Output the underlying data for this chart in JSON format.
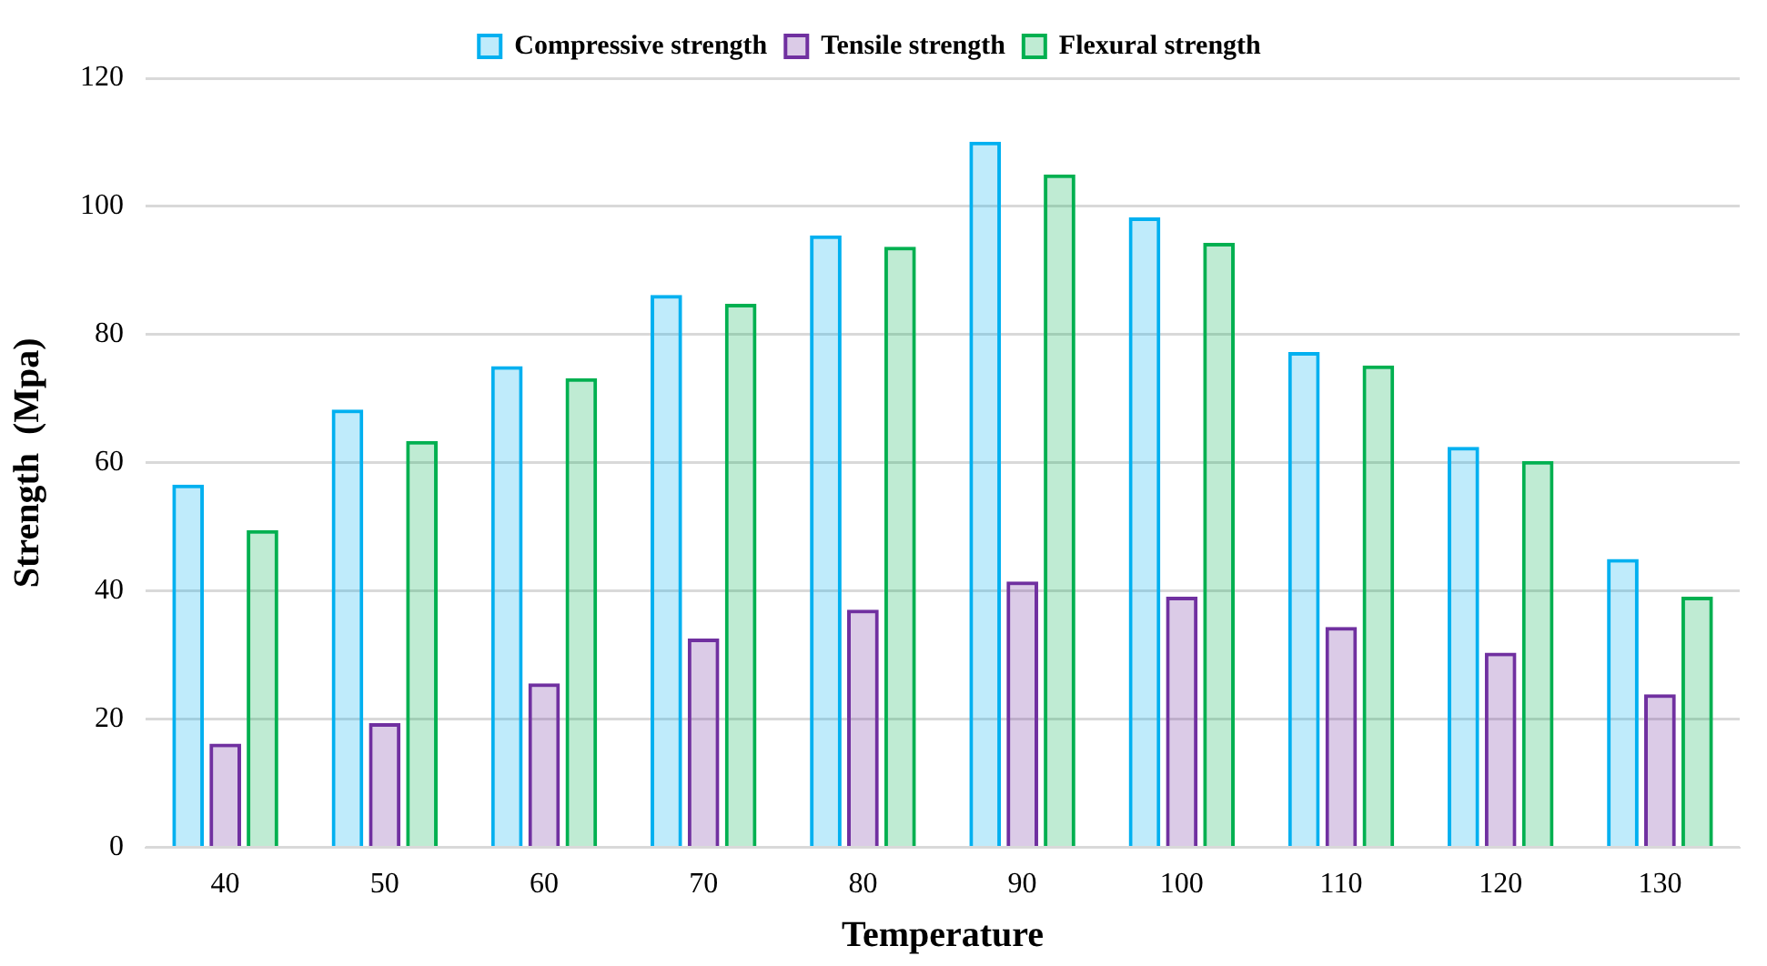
{
  "chart_data": {
    "type": "bar",
    "xlabel": "Temperature",
    "ylabel": "Strength  (Mpa)",
    "categories": [
      "40",
      "50",
      "60",
      "70",
      "80",
      "90",
      "100",
      "110",
      "120",
      "130"
    ],
    "series": [
      {
        "name": "Compressive strength",
        "color": "#00b0f0",
        "values": [
          56.6,
          68.3,
          75.1,
          86.2,
          95.5,
          110.1,
          98.3,
          77.3,
          62.5,
          45.0
        ]
      },
      {
        "name": "Tensile strength",
        "color": "#7030a0",
        "values": [
          16.2,
          19.4,
          25.6,
          32.6,
          37.1,
          41.5,
          39.1,
          34.4,
          30.4,
          23.9
        ]
      },
      {
        "name": "Flexural strength",
        "color": "#00b050",
        "values": [
          49.5,
          63.4,
          73.2,
          84.8,
          93.7,
          105.0,
          94.3,
          75.2,
          60.3,
          39.1
        ]
      }
    ],
    "ylim": [
      0,
      120
    ],
    "yticks": [
      0,
      20,
      40,
      60,
      80,
      100,
      120
    ],
    "grid": "y",
    "legend": "top"
  }
}
